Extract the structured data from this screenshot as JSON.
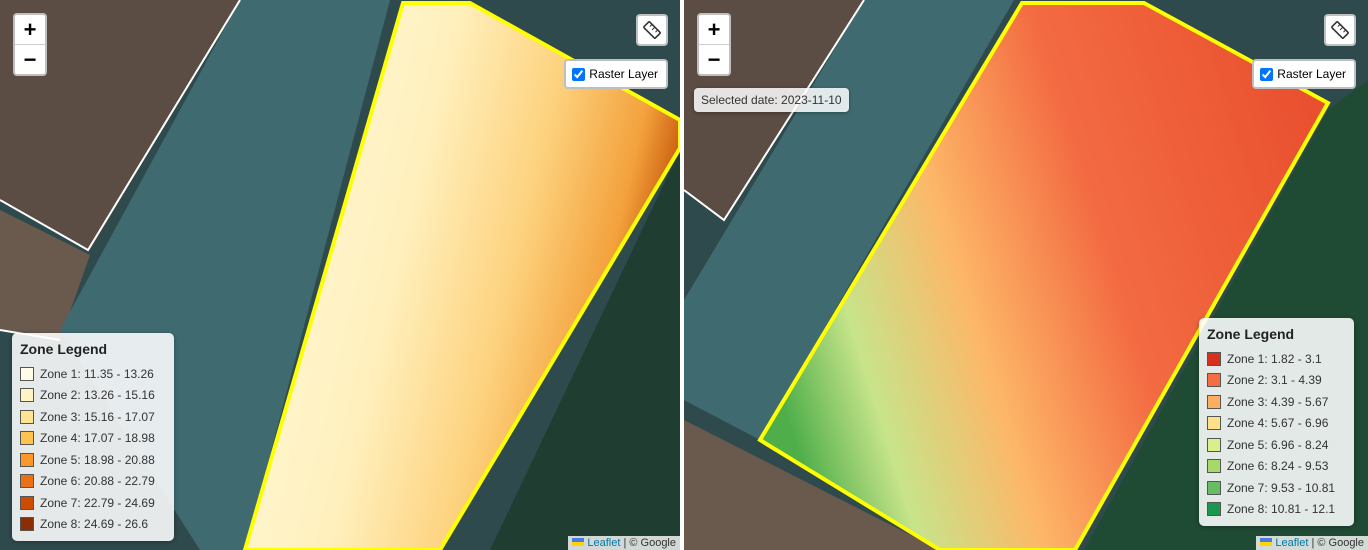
{
  "maps": [
    {
      "zoom_in": "+",
      "zoom_out": "−",
      "layer_control": {
        "label": "Raster Layer",
        "checked": true
      },
      "legend": {
        "title": "Zone Legend",
        "zones": [
          {
            "label": "Zone 1: 11.35 - 13.26",
            "color": "#fffde8"
          },
          {
            "label": "Zone 2: 13.26 - 15.16",
            "color": "#fff3c4"
          },
          {
            "label": "Zone 3: 15.16 - 17.07",
            "color": "#fee391"
          },
          {
            "label": "Zone 4: 17.07 - 18.98",
            "color": "#fec44f"
          },
          {
            "label": "Zone 5: 18.98 - 20.88",
            "color": "#fe9929"
          },
          {
            "label": "Zone 6: 20.88 - 22.79",
            "color": "#ec7014"
          },
          {
            "label": "Zone 7: 22.79 - 24.69",
            "color": "#cc4c02"
          },
          {
            "label": "Zone 8: 24.69 - 26.6",
            "color": "#8c2d04"
          }
        ]
      },
      "attribution": {
        "link": "Leaflet",
        "text": "| © Google"
      }
    },
    {
      "zoom_in": "+",
      "zoom_out": "−",
      "layer_control": {
        "label": "Raster Layer",
        "checked": true
      },
      "date_label": "Selected date: 2023-11-10",
      "legend": {
        "title": "Zone Legend",
        "zones": [
          {
            "label": "Zone 1: 1.82 - 3.1",
            "color": "#d7301f"
          },
          {
            "label": "Zone 2: 3.1 - 4.39",
            "color": "#f46d43"
          },
          {
            "label": "Zone 3: 4.39 - 5.67",
            "color": "#fdae61"
          },
          {
            "label": "Zone 4: 5.67 - 6.96",
            "color": "#fee08b"
          },
          {
            "label": "Zone 5: 6.96 - 8.24",
            "color": "#d9ef8b"
          },
          {
            "label": "Zone 6: 8.24 - 9.53",
            "color": "#a6d96a"
          },
          {
            "label": "Zone 7: 9.53 - 10.81",
            "color": "#66bd63"
          },
          {
            "label": "Zone 8: 10.81 - 12.1",
            "color": "#1a9850"
          }
        ]
      },
      "attribution": {
        "link": "Leaflet",
        "text": "| © Google"
      }
    }
  ]
}
